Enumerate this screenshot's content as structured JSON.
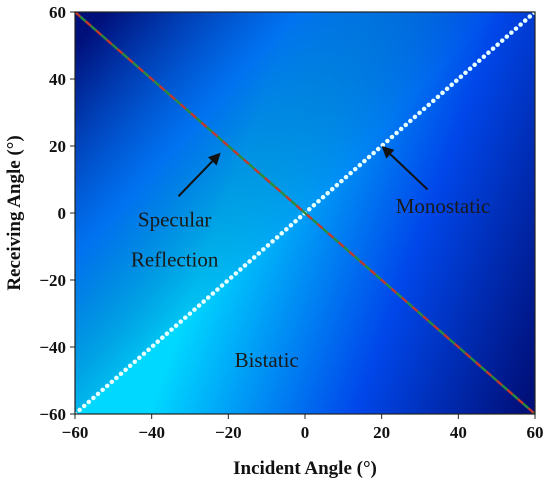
{
  "chart_data": {
    "type": "heatmap",
    "xlabel": "Incident Angle (°)",
    "ylabel": "Receiving Angle (°)",
    "xlim": [
      -60,
      60
    ],
    "ylim": [
      -60,
      60
    ],
    "xticks": [
      -60,
      -40,
      -20,
      0,
      20,
      40,
      60
    ],
    "yticks": [
      -60,
      -40,
      -20,
      0,
      20,
      40,
      60
    ],
    "xtick_labels": [
      "−60",
      "−40",
      "−20",
      "0",
      "20",
      "40",
      "60"
    ],
    "ytick_labels": [
      "−60",
      "−40",
      "−20",
      "0",
      "20",
      "40",
      "60"
    ],
    "grid": false,
    "colormap": [
      "#00d8ff",
      "#0047ea",
      "#00107a"
    ],
    "lines": [
      {
        "label": "Monostatic",
        "style": "dotted",
        "color": "#e6ffff",
        "x": [
          -60,
          60
        ],
        "y": [
          -60,
          60
        ]
      },
      {
        "label": "Specular Reflection",
        "style": "dashed",
        "colors": [
          "#c0392b",
          "#2e8b3a"
        ],
        "x": [
          -60,
          60
        ],
        "y": [
          60,
          -60
        ]
      }
    ],
    "annotations": [
      {
        "text": "Specular",
        "x": -34,
        "y": -4
      },
      {
        "text": "Reflection",
        "x": -34,
        "y": -16
      },
      {
        "text": "Monostatic",
        "x": 36,
        "y": 0
      },
      {
        "text": "Bistatic",
        "x": -10,
        "y": -46
      }
    ],
    "arrows": [
      {
        "from": [
          -33,
          5
        ],
        "to": [
          -22,
          18
        ]
      },
      {
        "from": [
          32,
          7
        ],
        "to": [
          20,
          20
        ]
      }
    ]
  }
}
